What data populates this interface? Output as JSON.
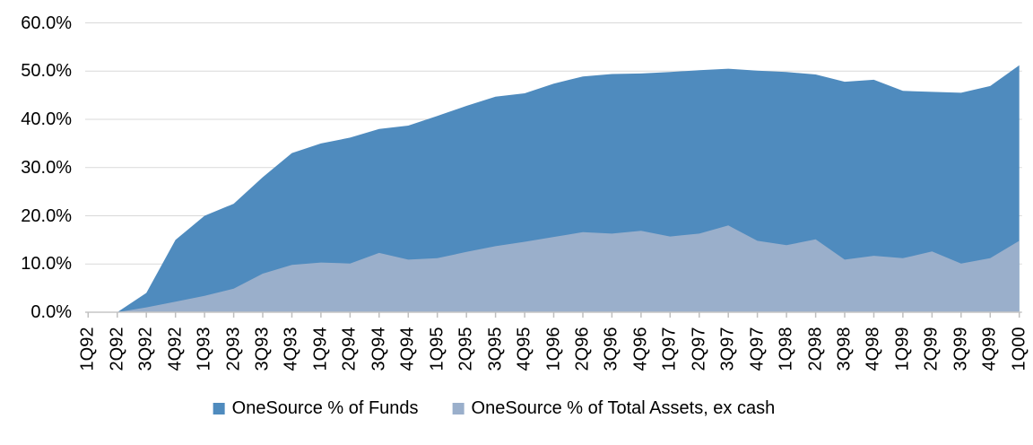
{
  "chart_data": {
    "type": "area",
    "title": "",
    "xlabel": "",
    "ylabel": "",
    "ylim": [
      0,
      60
    ],
    "grid": true,
    "legend_position": "bottom",
    "overlapping_series": true,
    "y_ticks": [
      {
        "value": 60,
        "label": "60.0%"
      },
      {
        "value": 50,
        "label": "50.0%"
      },
      {
        "value": 40,
        "label": "40.0%"
      },
      {
        "value": 30,
        "label": "30.0%"
      },
      {
        "value": 20,
        "label": "20.0%"
      },
      {
        "value": 10,
        "label": "10.0%"
      },
      {
        "value": 0,
        "label": "0.0%"
      }
    ],
    "categories": [
      "1Q92",
      "2Q92",
      "3Q92",
      "4Q92",
      "1Q93",
      "2Q93",
      "3Q93",
      "4Q93",
      "1Q94",
      "2Q94",
      "3Q94",
      "4Q94",
      "1Q95",
      "2Q95",
      "3Q95",
      "4Q95",
      "1Q96",
      "2Q96",
      "3Q96",
      "4Q96",
      "1Q97",
      "2Q97",
      "3Q97",
      "4Q97",
      "1Q98",
      "2Q98",
      "3Q98",
      "4Q98",
      "1Q99",
      "2Q99",
      "3Q99",
      "4Q99",
      "1Q00"
    ],
    "series": [
      {
        "name": "OneSource % of Funds",
        "color": "#4F8BBE",
        "values": [
          0,
          0,
          4.0,
          15.0,
          20.0,
          22.5,
          28.0,
          33.0,
          35.0,
          36.2,
          38.0,
          38.7,
          40.7,
          42.8,
          44.7,
          45.4,
          47.4,
          48.9,
          49.4,
          49.5,
          49.8,
          50.2,
          50.5,
          50.1,
          49.8,
          49.3,
          47.8,
          48.2,
          45.9,
          45.7,
          45.5,
          46.9,
          51.2
        ]
      },
      {
        "name": "OneSource % of Total Assets, ex cash",
        "color": "#9AAFCB",
        "values": [
          0,
          0,
          1.0,
          2.2,
          3.4,
          4.9,
          8.0,
          9.8,
          10.3,
          10.1,
          12.3,
          10.9,
          11.2,
          12.5,
          13.7,
          14.6,
          15.6,
          16.6,
          16.3,
          16.9,
          15.7,
          16.3,
          18.0,
          14.8,
          13.9,
          15.1,
          10.9,
          11.7,
          11.2,
          12.6,
          10.1,
          11.2,
          14.8
        ]
      }
    ]
  },
  "colors": {
    "background": "#FFFFFF",
    "gridline": "#D9D9D9",
    "axis_line": "#C6C6C6",
    "tick": "#BFBFBF",
    "text": "#000000"
  }
}
